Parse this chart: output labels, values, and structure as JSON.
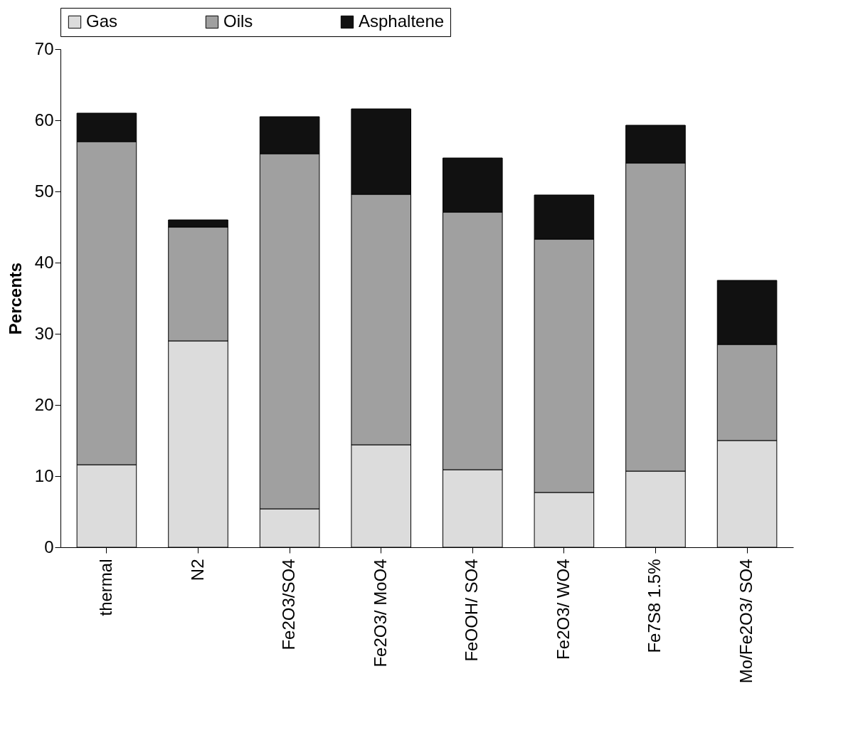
{
  "chart_data": {
    "type": "bar",
    "stacked": true,
    "ylabel": "Percents",
    "categories": [
      "thermal",
      "N2",
      "Fe2O3/SO4",
      "Fe2O3/ MoO4",
      "FeOOH/ SO4",
      "Fe2O3/ WO4",
      "Fe7S8 1.5%",
      "Mo/Fe2O3/ SO4"
    ],
    "series": [
      {
        "name": "Gas",
        "color": "#dcdcdc",
        "values": [
          11.6,
          29,
          5.4,
          14.4,
          10.9,
          7.7,
          10.7,
          15
        ]
      },
      {
        "name": "Oils",
        "color": "#a0a0a0",
        "values": [
          45.4,
          16,
          49.9,
          35.2,
          36.2,
          35.6,
          43.3,
          13.5
        ]
      },
      {
        "name": "Asphaltene",
        "color": "#111111",
        "values": [
          4,
          1,
          5.2,
          12,
          7.6,
          6.2,
          5.3,
          9
        ]
      }
    ],
    "ylim": [
      0,
      70
    ],
    "yticks": [
      0,
      10,
      20,
      30,
      40,
      50,
      60,
      70
    ],
    "grid": false,
    "legend": "top"
  }
}
